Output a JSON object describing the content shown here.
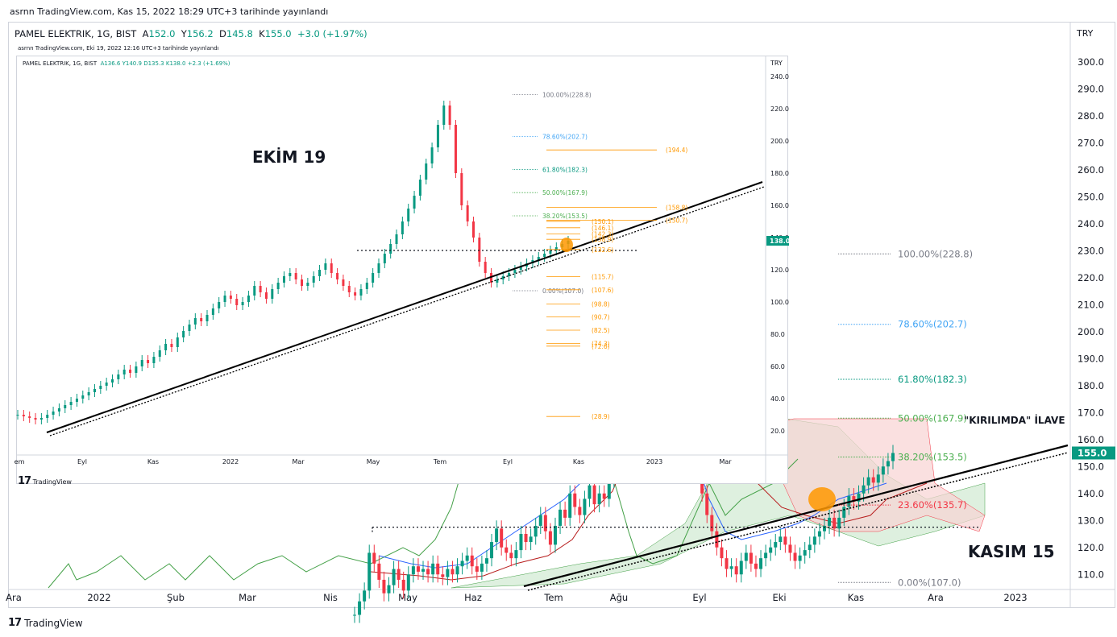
{
  "header": {
    "published": "asrnn TradingView.com, Kas 15, 2022 18:29 UTC+3 tarihinde yayınlandı"
  },
  "symbol": {
    "name": "PAMEL ELEKTRIK, 1G, BIST",
    "open_label": "A",
    "open": "152.0",
    "high_label": "Y",
    "high": "156.2",
    "low_label": "D",
    "low": "145.8",
    "close_label": "K",
    "close": "155.0",
    "change": "+3.0 (+1.97%)"
  },
  "footer": {
    "logo_text": "TradingView"
  },
  "colors": {
    "up": "#089981",
    "down": "#f23645",
    "ichimoku_fast": "#2962ff",
    "ichimoku_slow": "#b71c1c",
    "lagging": "#43a047",
    "cloud_up": "#c8e6c9",
    "cloud_down": "#f8d3d3",
    "fib_0": "#787b86",
    "fib_236": "#f23645",
    "fib_382": "#4caf50",
    "fib_50": "#4caf50",
    "fib_618": "#089981",
    "fib_786": "#42a5f5",
    "fib_100": "#787b86",
    "fib_orange": "#ff9800"
  },
  "chart_data": [
    {
      "type": "candlestick",
      "title": "PAMEL ELEKTRIK, 1G, BIST",
      "currency": "TRY",
      "x_ticks": [
        "Ara",
        "2022",
        "Şub",
        "Mar",
        "Nis",
        "May",
        "Haz",
        "Tem",
        "Ağu",
        "Eyl",
        "Eki",
        "Kas",
        "Ara",
        "2023"
      ],
      "y_ticks": [
        110.0,
        120.0,
        130.0,
        140.0,
        150.0,
        160.0,
        170.0,
        180.0,
        190.0,
        200.0,
        210.0,
        220.0,
        230.0,
        240.0,
        250.0,
        260.0,
        270.0,
        280.0,
        290.0,
        300.0
      ],
      "ylim": [
        105,
        305
      ],
      "last_price": "155.0",
      "fib_levels": [
        {
          "label": "100.00%(228.8)",
          "value": 228.8
        },
        {
          "label": "78.60%(202.7)",
          "value": 202.7
        },
        {
          "label": "61.80%(182.3)",
          "value": 182.3
        },
        {
          "label": "50.00%(167.9)",
          "value": 167.9
        },
        {
          "label": "38.20%(153.5)",
          "value": 153.5
        },
        {
          "label": "23.60%(135.7)",
          "value": 135.7
        },
        {
          "label": "0.00%(107.0)",
          "value": 107.0
        }
      ],
      "annotations": [
        "\"KIRILIMDA\" İLAVE",
        "KASIM 15"
      ],
      "horizontal_level": 127.5,
      "ohlc_close": [
        95,
        100,
        104,
        118,
        114,
        108,
        103,
        106,
        112,
        108,
        104,
        110,
        113,
        111,
        112,
        110,
        114,
        110,
        109,
        112,
        110,
        113,
        115,
        117,
        113,
        111,
        114,
        116,
        122,
        127,
        120,
        118,
        116,
        119,
        125,
        122,
        124,
        128,
        132,
        126,
        121,
        128,
        134,
        131,
        140,
        135,
        132,
        138,
        143,
        136,
        140,
        138,
        145,
        152,
        148,
        156,
        162,
        170,
        180,
        176,
        182,
        190,
        196,
        205,
        198,
        206,
        190,
        178,
        168,
        158,
        148,
        140,
        132,
        126,
        120,
        116,
        112,
        113,
        110,
        115,
        118,
        114,
        112,
        116,
        118,
        120,
        122,
        124,
        121,
        118,
        115,
        117,
        119,
        121,
        124,
        126,
        128,
        131,
        127,
        131,
        135,
        139,
        137,
        140,
        143,
        146,
        144,
        147,
        150,
        152,
        155
      ]
    },
    {
      "type": "candlestick",
      "title": "PAMEL ELEKTRIK, 1G, BIST",
      "published": "asrnn TradingView.com, Eki 19, 2022 12:16 UTC+3 tarihinde yayınlandı",
      "header": {
        "open": "A136.6",
        "high": "Y140.9",
        "low": "D135.3",
        "close": "K138.0",
        "change": "+2.3 (+1.69%)"
      },
      "currency": "TRY",
      "x_ticks": [
        "em",
        "Eyl",
        "Kas",
        "2022",
        "Mar",
        "May",
        "Tem",
        "Eyl",
        "Kas",
        "2023",
        "Mar"
      ],
      "y_ticks": [
        20.0,
        40.0,
        60.0,
        80.0,
        100.0,
        120.0,
        140.0,
        160.0,
        180.0,
        200.0,
        220.0,
        240.0
      ],
      "ylim": [
        5,
        245
      ],
      "last_price": "138.0",
      "annotation": "EKİM 19",
      "fib_levels": [
        {
          "label": "100.00%(228.8)",
          "value": 228.8
        },
        {
          "label": "78.60%(202.7)",
          "value": 202.7
        },
        {
          "label": "61.80%(182.3)",
          "value": 182.3
        },
        {
          "label": "50.00%(167.9)",
          "value": 167.9
        },
        {
          "label": "38.20%(153.5)",
          "value": 153.5
        },
        {
          "label": "0.00%(107.0)",
          "value": 107.0
        }
      ],
      "orange_levels": [
        {
          "label": "(194.4)",
          "value": 194.4
        },
        {
          "label": "(158.8)",
          "value": 158.8
        },
        {
          "label": "(150.7)",
          "value": 150.7
        },
        {
          "label": "(150.1)",
          "value": 150.1
        },
        {
          "label": "(146.1)",
          "value": 146.1
        },
        {
          "label": "(142.3)",
          "value": 142.3
        },
        {
          "label": "(138.9)",
          "value": 138.9
        },
        {
          "label": "(132.6)",
          "value": 132.6
        },
        {
          "label": "(115.7)",
          "value": 115.7
        },
        {
          "label": "(107.6)",
          "value": 107.6
        },
        {
          "label": "(98.8)",
          "value": 98.8
        },
        {
          "label": "(90.7)",
          "value": 90.7
        },
        {
          "label": "(82.5)",
          "value": 82.5
        },
        {
          "label": "(74.3)",
          "value": 74.3
        },
        {
          "label": "(72.6)",
          "value": 72.6
        },
        {
          "label": "(28.9)",
          "value": 28.9
        }
      ],
      "horizontal_level": 132.0,
      "ohlc_close": [
        30,
        29,
        28,
        27,
        28,
        30,
        32,
        34,
        36,
        38,
        40,
        42,
        44,
        46,
        48,
        50,
        52,
        55,
        58,
        56,
        60,
        64,
        62,
        66,
        70,
        74,
        72,
        78,
        82,
        86,
        90,
        88,
        92,
        96,
        100,
        104,
        102,
        98,
        100,
        104,
        110,
        106,
        102,
        108,
        112,
        116,
        118,
        114,
        110,
        112,
        116,
        120,
        124,
        118,
        114,
        110,
        106,
        104,
        108,
        112,
        118,
        124,
        130,
        136,
        142,
        150,
        158,
        166,
        176,
        186,
        196,
        210,
        222,
        210,
        180,
        160,
        150,
        140,
        125,
        118,
        112,
        114,
        116,
        118,
        120,
        122,
        124,
        126,
        128,
        130,
        132,
        134,
        136,
        138
      ]
    }
  ],
  "main_labels": {
    "currency": "TRY"
  },
  "inset": {
    "logo_text": "TradingView",
    "currency": "TRY"
  },
  "text": {
    "annotation_kirilim": "\"KIRILIMDA\" İLAVE",
    "annotation_kasim": "KASIM 15",
    "annotation_ekim": "EKİM 19"
  }
}
